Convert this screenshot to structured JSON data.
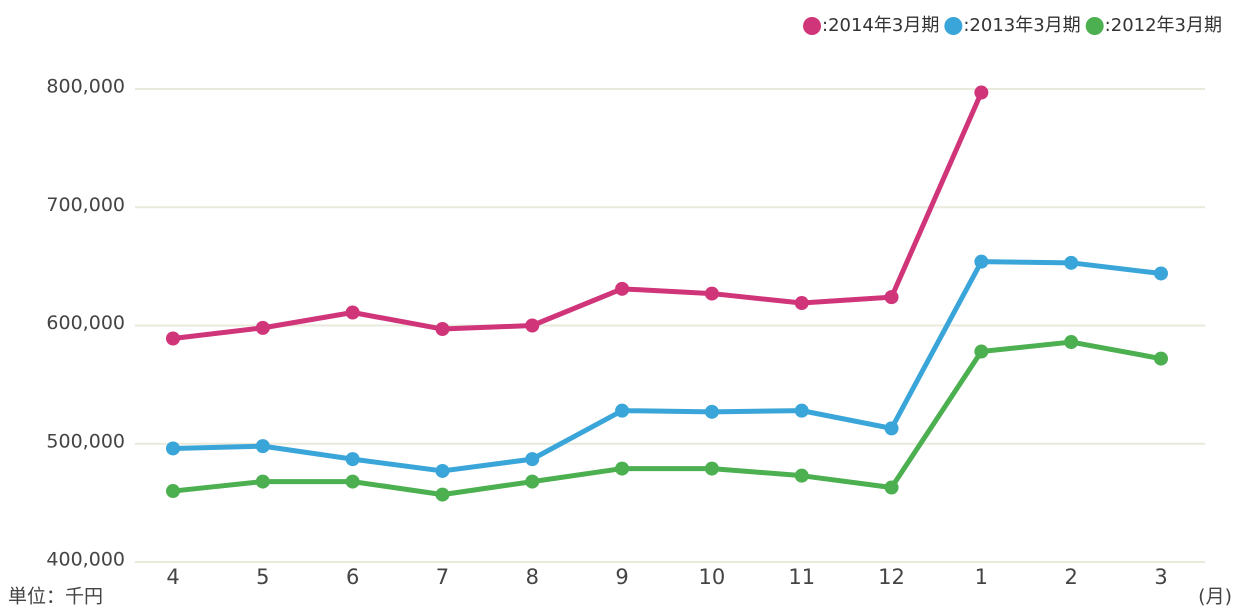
{
  "chart_data": {
    "type": "line",
    "y_unit_label": "単位：千円",
    "x_unit_label": "(月)",
    "categories": [
      "4",
      "5",
      "6",
      "7",
      "8",
      "9",
      "10",
      "11",
      "12",
      "1",
      "2",
      "3"
    ],
    "series": [
      {
        "name": ":2014年3月期",
        "color": "#d0357a",
        "values": [
          589000,
          598000,
          611000,
          597000,
          600000,
          631000,
          627000,
          619000,
          624000,
          797000,
          null,
          null
        ]
      },
      {
        "name": ":2013年3月期",
        "color": "#3aa5d8",
        "values": [
          496000,
          498000,
          487000,
          477000,
          487000,
          528000,
          527000,
          528000,
          513000,
          654000,
          653000,
          644000
        ]
      },
      {
        "name": ":2012年3月期",
        "color": "#4caf50",
        "values": [
          460000,
          468000,
          468000,
          457000,
          468000,
          479000,
          479000,
          473000,
          463000,
          578000,
          586000,
          572000
        ]
      }
    ],
    "ylim": [
      400000,
      800000
    ],
    "yticks": [
      {
        "value": 400000,
        "label": "400,000"
      },
      {
        "value": 500000,
        "label": "500,000"
      },
      {
        "value": 600000,
        "label": "600,000"
      },
      {
        "value": 700000,
        "label": "700,000"
      },
      {
        "value": 800000,
        "label": "800,000"
      }
    ],
    "grid": true,
    "legend": "top-right"
  }
}
